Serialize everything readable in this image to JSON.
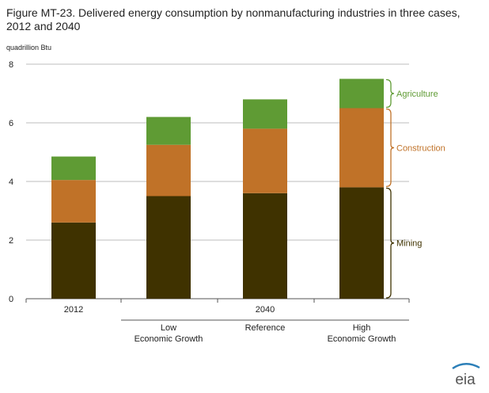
{
  "figure": {
    "title_line1": "Figure MT-23. Delivered energy consumption by nonmanufacturing industries in three cases,",
    "title_line2": "2012 and 2040",
    "unit_label": "quadrillion  Btu",
    "logo_text": "eia"
  },
  "colors": {
    "mining": "#3f3200",
    "construction": "#c07228",
    "agriculture": "#5f9b34",
    "grid": "#bdbdbd",
    "axis": "#555555"
  },
  "chart_data": {
    "type": "bar",
    "stacked": true,
    "title": "Figure MT-23. Delivered energy consumption by nonmanufacturing industries in three cases, 2012 and 2040",
    "ylabel": "quadrillion  Btu",
    "ylim": [
      0,
      8
    ],
    "yticks": [
      "0",
      "2",
      "4",
      "6",
      "8"
    ],
    "grid": true,
    "categories": [
      "2012",
      "Low Economic Growth",
      "Reference",
      "High Economic Growth"
    ],
    "group_labels": [
      "2012",
      "2040"
    ],
    "category_labels": [
      {
        "line1": "",
        "line2": ""
      },
      {
        "line1": "Low",
        "line2": "Economic Growth"
      },
      {
        "line1": "Reference",
        "line2": ""
      },
      {
        "line1": "High",
        "line2": "Economic Growth"
      }
    ],
    "series": [
      {
        "name": "Mining",
        "color": "#3f3200",
        "values": [
          2.6,
          3.5,
          3.6,
          3.8
        ]
      },
      {
        "name": "Construction",
        "color": "#c07228",
        "values": [
          1.45,
          1.75,
          2.2,
          2.7
        ]
      },
      {
        "name": "Agriculture",
        "color": "#5f9b34",
        "values": [
          0.8,
          0.95,
          1.0,
          1.0
        ]
      }
    ],
    "legend": "right, brace labels"
  }
}
